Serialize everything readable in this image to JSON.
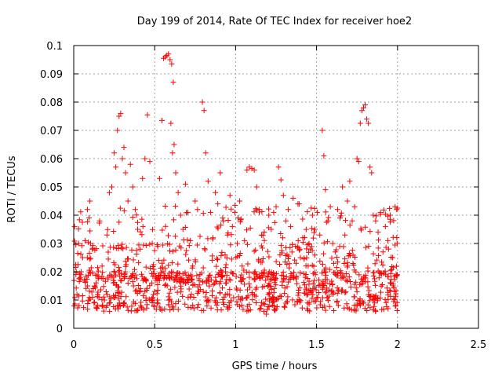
{
  "chart_data": {
    "type": "scatter",
    "title": "Day 199 of 2014, Rate Of TEC Index for receiver hoe2",
    "xlabel": "GPS time / hours",
    "ylabel": "ROTI / TECUs",
    "xlim": [
      0,
      2.5
    ],
    "ylim": [
      0,
      0.1
    ],
    "x_ticks": [
      "0",
      "0.5",
      "1",
      "1.5",
      "2",
      "2.5"
    ],
    "x_tick_values": [
      0,
      0.5,
      1,
      1.5,
      2,
      2.5
    ],
    "y_ticks": [
      "0",
      "0.01",
      "0.02",
      "0.03",
      "0.04",
      "0.05",
      "0.06",
      "0.07",
      "0.08",
      "0.09",
      "0.1"
    ],
    "y_tick_values": [
      0,
      0.01,
      0.02,
      0.03,
      0.04,
      0.05,
      0.06,
      0.07,
      0.08,
      0.09,
      0.1
    ],
    "grid": true,
    "marker": "+",
    "marker_color": "#ff0000",
    "series": [
      {
        "name": "ROTI",
        "points": [
          [
            0.005,
            0.036
          ],
          [
            0.012,
            0.0225
          ],
          [
            0.02,
            0.012
          ],
          [
            0.03,
            0.03
          ],
          [
            0.04,
            0.018
          ],
          [
            0.055,
            0.025
          ],
          [
            0.07,
            0.031
          ],
          [
            0.085,
            0.042
          ],
          [
            0.1,
            0.045
          ],
          [
            0.115,
            0.028
          ],
          [
            0.13,
            0.015
          ],
          [
            0.145,
            0.007
          ],
          [
            0.16,
            0.038
          ],
          [
            0.175,
            0.022
          ],
          [
            0.19,
            0.01
          ],
          [
            0.205,
            0.033
          ],
          [
            0.22,
            0.048
          ],
          [
            0.235,
            0.05
          ],
          [
            0.25,
            0.062
          ],
          [
            0.26,
            0.057
          ],
          [
            0.27,
            0.07
          ],
          [
            0.28,
            0.075
          ],
          [
            0.29,
            0.076
          ],
          [
            0.3,
            0.06
          ],
          [
            0.31,
            0.064
          ],
          [
            0.32,
            0.055
          ],
          [
            0.335,
            0.045
          ],
          [
            0.35,
            0.058
          ],
          [
            0.365,
            0.05
          ],
          [
            0.38,
            0.042
          ],
          [
            0.395,
            0.035
          ],
          [
            0.41,
            0.028
          ],
          [
            0.425,
            0.053
          ],
          [
            0.44,
            0.06
          ],
          [
            0.455,
            0.0755
          ],
          [
            0.47,
            0.059
          ],
          [
            0.485,
            0.03
          ],
          [
            0.5,
            0.013
          ],
          [
            0.515,
            0.009
          ],
          [
            0.53,
            0.053
          ],
          [
            0.545,
            0.0735
          ],
          [
            0.555,
            0.0955
          ],
          [
            0.565,
            0.096
          ],
          [
            0.575,
            0.0965
          ],
          [
            0.585,
            0.097
          ],
          [
            0.595,
            0.095
          ],
          [
            0.605,
            0.0935
          ],
          [
            0.615,
            0.087
          ],
          [
            0.6,
            0.0725
          ],
          [
            0.61,
            0.062
          ],
          [
            0.62,
            0.065
          ],
          [
            0.63,
            0.055
          ],
          [
            0.645,
            0.048
          ],
          [
            0.66,
            0.04
          ],
          [
            0.675,
            0.035
          ],
          [
            0.69,
            0.051
          ],
          [
            0.705,
            0.041
          ],
          [
            0.72,
            0.031
          ],
          [
            0.735,
            0.022
          ],
          [
            0.75,
            0.045
          ],
          [
            0.765,
            0.042
          ],
          [
            0.78,
            0.0325
          ],
          [
            0.795,
            0.08
          ],
          [
            0.805,
            0.077
          ],
          [
            0.815,
            0.062
          ],
          [
            0.83,
            0.052
          ],
          [
            0.845,
            0.041
          ],
          [
            0.86,
            0.032
          ],
          [
            0.875,
            0.048
          ],
          [
            0.89,
            0.044
          ],
          [
            0.905,
            0.055
          ],
          [
            0.92,
            0.039
          ],
          [
            0.935,
            0.026
          ],
          [
            0.95,
            0.033
          ],
          [
            0.965,
            0.047
          ],
          [
            0.98,
            0.036
          ],
          [
            0.995,
            0.041
          ],
          [
            1.01,
            0.03
          ],
          [
            1.025,
            0.045
          ],
          [
            1.04,
            0.022
          ],
          [
            1.055,
            0.031
          ],
          [
            1.07,
            0.056
          ],
          [
            1.085,
            0.057
          ],
          [
            1.1,
            0.0565
          ],
          [
            1.115,
            0.056
          ],
          [
            1.13,
            0.05
          ],
          [
            1.145,
            0.042
          ],
          [
            1.16,
            0.033
          ],
          [
            1.175,
            0.006
          ],
          [
            1.19,
            0.005
          ],
          [
            1.205,
            0.04
          ],
          [
            1.22,
            0.035
          ],
          [
            1.235,
            0.041
          ],
          [
            1.25,
            0.043
          ],
          [
            1.265,
            0.057
          ],
          [
            1.28,
            0.0525
          ],
          [
            1.295,
            0.047
          ],
          [
            1.31,
            0.038
          ],
          [
            1.325,
            0.042
          ],
          [
            1.34,
            0.036
          ],
          [
            1.355,
            0.046
          ],
          [
            1.37,
            0.029
          ],
          [
            1.385,
            0.044
          ],
          [
            1.4,
            0.025
          ],
          [
            1.415,
            0.032
          ],
          [
            1.43,
            0.018
          ],
          [
            1.445,
            0.012
          ],
          [
            1.46,
            0.028
          ],
          [
            1.475,
            0.04
          ],
          [
            1.49,
            0.035
          ],
          [
            1.505,
            0.041
          ],
          [
            1.52,
            0.033
          ],
          [
            1.535,
            0.07
          ],
          [
            1.545,
            0.061
          ],
          [
            1.555,
            0.049
          ],
          [
            1.57,
            0.038
          ],
          [
            1.585,
            0.043
          ],
          [
            1.6,
            0.03
          ],
          [
            1.615,
            0.027
          ],
          [
            1.63,
            0.042
          ],
          [
            1.645,
            0.039
          ],
          [
            1.66,
            0.05
          ],
          [
            1.675,
            0.033
          ],
          [
            1.69,
            0.045
          ],
          [
            1.705,
            0.052
          ],
          [
            1.72,
            0.038
          ],
          [
            1.735,
            0.043
          ],
          [
            1.75,
            0.06
          ],
          [
            1.76,
            0.059
          ],
          [
            1.77,
            0.0725
          ],
          [
            1.78,
            0.077
          ],
          [
            1.79,
            0.078
          ],
          [
            1.8,
            0.079
          ],
          [
            1.81,
            0.074
          ],
          [
            1.82,
            0.0725
          ],
          [
            1.83,
            0.057
          ],
          [
            1.84,
            0.055
          ],
          [
            1.85,
            0.04
          ],
          [
            1.865,
            0.038
          ],
          [
            1.88,
            0.034
          ],
          [
            1.895,
            0.041
          ],
          [
            1.91,
            0.027
          ],
          [
            1.925,
            0.036
          ],
          [
            1.94,
            0.031
          ],
          [
            1.955,
            0.04
          ],
          [
            1.97,
            0.025
          ],
          [
            1.985,
            0.043
          ],
          [
            1.995,
            0.042
          ],
          [
            2.0,
            0.0425
          ]
        ]
      }
    ]
  }
}
